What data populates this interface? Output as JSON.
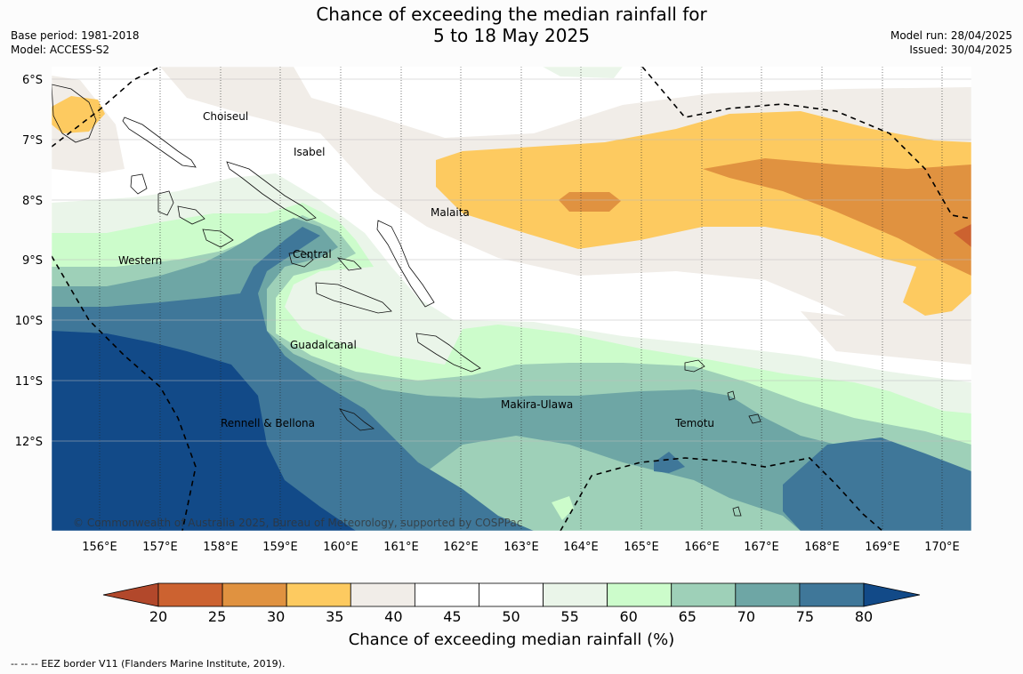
{
  "title_line1": "Chance of exceeding the median rainfall for",
  "title_line2": "5 to 18 May 2025",
  "base_period": "Base period: 1981-2018",
  "model": "Model: ACCESS-S2",
  "model_run": "Model run: 28/04/2025",
  "issued": "Issued: 30/04/2025",
  "copyright": "© Commonwealth of Australia 2025, Bureau of Meteorology, supported by COSPPac",
  "lat_labels": [
    "6°S",
    "7°S",
    "8°S",
    "9°S",
    "10°S",
    "11°S",
    "12°S"
  ],
  "lon_labels": [
    "156°E",
    "157°E",
    "158°E",
    "159°E",
    "160°E",
    "161°E",
    "162°E",
    "163°E",
    "164°E",
    "165°E",
    "166°E",
    "167°E",
    "168°E",
    "169°E",
    "170°E"
  ],
  "regions": {
    "choiseul": "Choiseul",
    "isabel": "Isabel",
    "malaita": "Malaita",
    "western": "Western",
    "central": "Central",
    "guadalcanal": "Guadalcanal",
    "makira": "Makira-Ulawa",
    "rennell": "Rennell & Bellona",
    "temotu": "Temotu"
  },
  "colorbar": {
    "ticks": [
      "20",
      "25",
      "30",
      "35",
      "40",
      "45",
      "50",
      "55",
      "60",
      "65",
      "70",
      "75",
      "80"
    ],
    "colors": [
      "#b2482b",
      "#cc6230",
      "#e09240",
      "#fdca60",
      "#f1ede8",
      "#ffffff",
      "#ffffff",
      "#eaf5e9",
      "#ccfccb",
      "#9ed0b8",
      "#6ea6a5",
      "#3f7799",
      "#124a88"
    ],
    "title": "Chance of exceeding median rainfall (%)"
  },
  "footnote": "-- -- -- EEZ border V11 (Flanders Marine Institute, 2019)."
}
